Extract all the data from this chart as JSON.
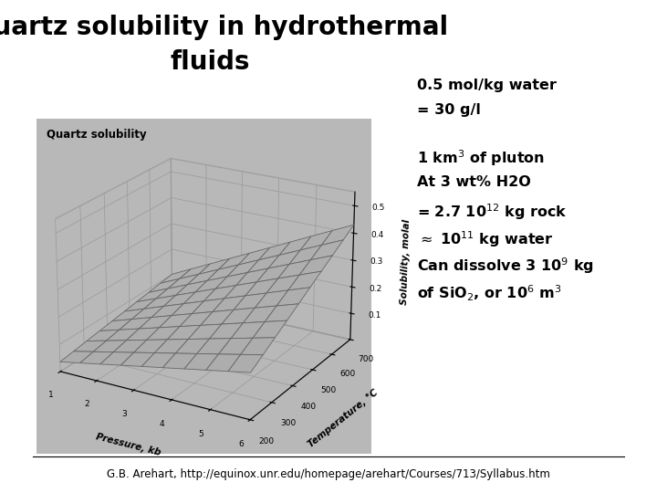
{
  "title_line1": "Quartz solubility in hydrothermal",
  "title_line2": "fluids",
  "title_fontsize": 20,
  "bg_color": "#ffffff",
  "plot_bg_color": "#b8b8b8",
  "surface_color": "#e0e0e0",
  "grid_color": "#666666",
  "temp_min": 200,
  "temp_max": 700,
  "pressure_min": 1,
  "pressure_max": 6,
  "solubility_label": "Solubility, molal",
  "temp_label": "Temperature, °C",
  "pressure_label": "Pressure, kb",
  "inner_title": "Quartz solubility",
  "footer": "G.B. Arehart, http://equinox.unr.edu/homepage/arehart/Courses/713/Syllabus.htm",
  "footer_fontsize": 8.5,
  "annotation_fontsize": 11.5,
  "elev": 22,
  "azim": -60
}
